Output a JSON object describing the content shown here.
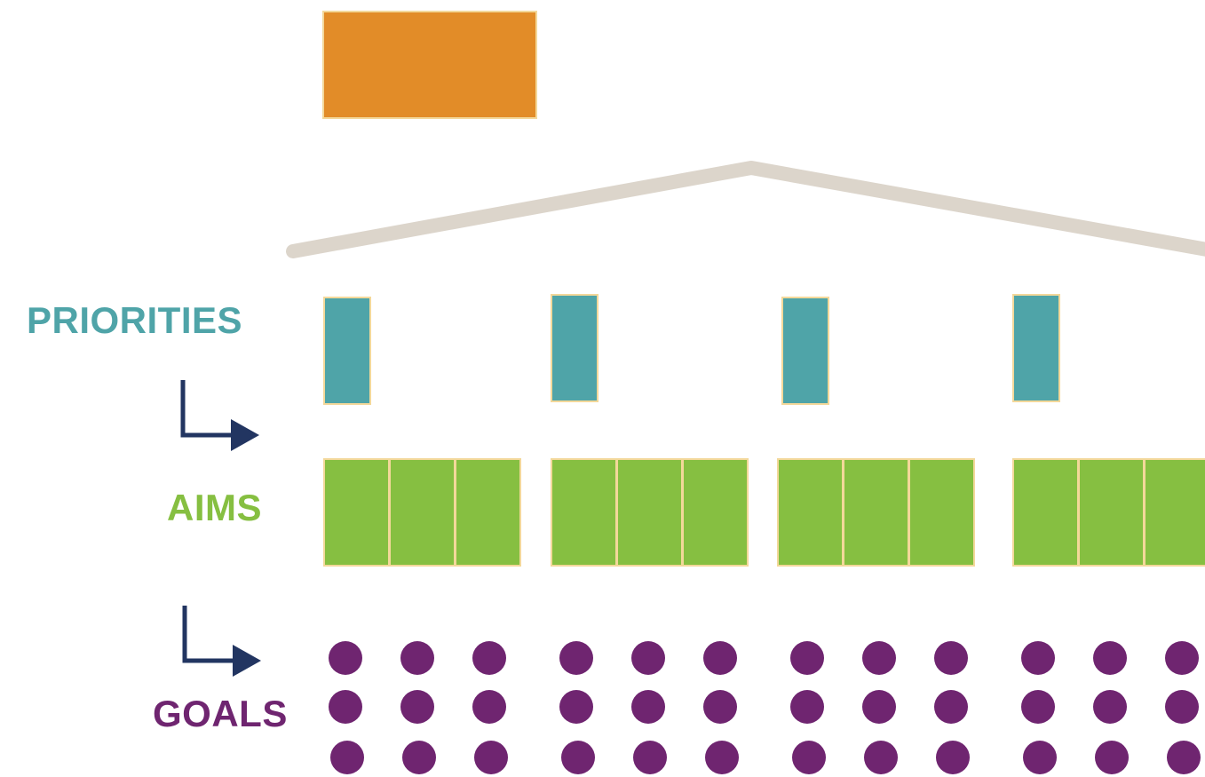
{
  "labels": {
    "priorities": "PRIORITIES",
    "aims": "AIMS",
    "goals": "GOALS"
  },
  "colors": {
    "top": "#e28c28",
    "roof": "#dcd5cb",
    "priority": "#4fa4a8",
    "aim": "#86bf41",
    "goal": "#6f2570",
    "arrow": "#223561"
  },
  "icons": {
    "arrow": "down-right-arrow-icon"
  }
}
